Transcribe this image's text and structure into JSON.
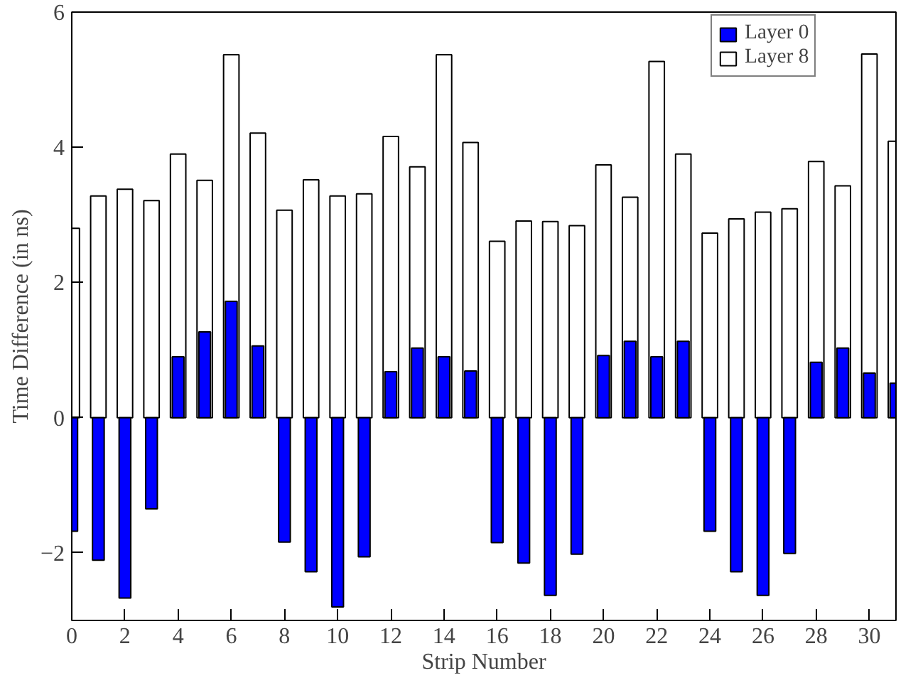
{
  "chart_data": {
    "type": "bar",
    "xlabel": "Strip Number",
    "ylabel": "Time Difference (in ns)",
    "x": [
      0,
      1,
      2,
      3,
      4,
      5,
      6,
      7,
      8,
      9,
      10,
      11,
      12,
      13,
      14,
      15,
      16,
      17,
      18,
      19,
      20,
      21,
      22,
      23,
      24,
      25,
      26,
      27,
      28,
      29,
      30,
      31
    ],
    "series": [
      {
        "name": "Layer 8",
        "color": "#ffffff",
        "values": [
          2.8,
          3.28,
          3.38,
          3.21,
          3.9,
          3.51,
          5.37,
          4.21,
          3.07,
          3.52,
          3.28,
          3.31,
          4.16,
          3.71,
          5.37,
          4.07,
          2.61,
          2.91,
          2.9,
          2.84,
          3.74,
          3.26,
          5.27,
          3.9,
          2.73,
          2.94,
          3.04,
          3.09,
          3.79,
          3.43,
          5.38,
          4.09
        ]
      },
      {
        "name": "Layer 0",
        "color": "#0000ff",
        "values": [
          -1.68,
          -2.11,
          -2.67,
          -1.35,
          0.9,
          1.27,
          1.72,
          1.06,
          -1.84,
          -2.28,
          -2.8,
          -2.06,
          0.68,
          1.03,
          0.9,
          0.69,
          -1.85,
          -2.15,
          -2.63,
          -2.02,
          0.92,
          1.13,
          0.9,
          1.13,
          -1.68,
          -2.28,
          -2.63,
          -2.01,
          0.82,
          1.03,
          0.66,
          0.51
        ]
      }
    ],
    "xlim": [
      0,
      31
    ],
    "xticks": [
      0,
      2,
      4,
      6,
      8,
      10,
      12,
      14,
      16,
      18,
      20,
      22,
      24,
      26,
      28,
      30
    ],
    "ylim": [
      -3,
      6
    ],
    "yticks": [
      -2,
      0,
      2,
      4,
      6
    ],
    "legend": "top right",
    "grid": false
  }
}
